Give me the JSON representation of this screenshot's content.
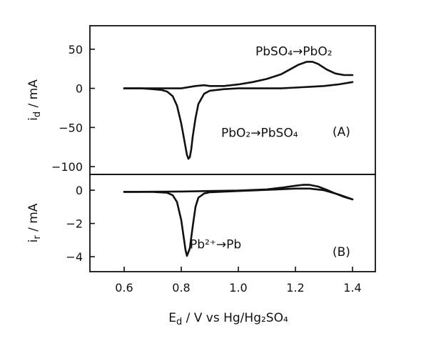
{
  "chart_data": [
    {
      "type": "line",
      "panel": "(A)",
      "ylabel": "i_d / mA",
      "ylim": [
        -110,
        80
      ],
      "yticks": [
        50,
        0,
        -50,
        -100
      ],
      "xlim": [
        0.48,
        1.48
      ],
      "grid": false,
      "annotations": [
        {
          "text": "PbSO₄→PbO₂",
          "x": 1.06,
          "y": 42
        },
        {
          "text": "PbO₂→PbSO₄",
          "x": 0.94,
          "y": -62
        }
      ],
      "series": [
        {
          "x": [
            0.6,
            0.66,
            0.7,
            0.73,
            0.75,
            0.77,
            0.785,
            0.8,
            0.81,
            0.82,
            0.825,
            0.83,
            0.835,
            0.84,
            0.85,
            0.86,
            0.88,
            0.9,
            0.95,
            1.0,
            1.05,
            1.1,
            1.15,
            1.2,
            1.25,
            1.3,
            1.35,
            1.4
          ],
          "y": [
            0,
            0,
            -1,
            -2,
            -4,
            -10,
            -22,
            -45,
            -65,
            -85,
            -90,
            -88,
            -78,
            -62,
            -38,
            -20,
            -7,
            -3,
            -1,
            0,
            0,
            0,
            0,
            1,
            2,
            3,
            5,
            8
          ]
        },
        {
          "x": [
            0.6,
            0.7,
            0.8,
            0.85,
            0.88,
            0.9,
            0.95,
            1.0,
            1.05,
            1.1,
            1.15,
            1.18,
            1.21,
            1.24,
            1.26,
            1.28,
            1.31,
            1.34,
            1.37,
            1.4
          ],
          "y": [
            0,
            0,
            0,
            3,
            4,
            3,
            3,
            5,
            8,
            12,
            18,
            24,
            30,
            34,
            34,
            31,
            24,
            19,
            17,
            17
          ]
        }
      ]
    },
    {
      "type": "line",
      "panel": "(B)",
      "ylabel": "i_r / mA",
      "ylim": [
        -4.9,
        0.95
      ],
      "yticks": [
        0,
        -2,
        -4
      ],
      "xlim": [
        0.48,
        1.48
      ],
      "xticks": [
        0.6,
        0.8,
        1.0,
        1.2,
        1.4
      ],
      "xlabel": "E_d / V vs Hg/Hg₂SO₄",
      "grid": false,
      "annotations": [
        {
          "text": "Pb²⁺→Pb",
          "x": 0.83,
          "y": -3.5
        }
      ],
      "series": [
        {
          "x": [
            0.6,
            0.7,
            0.75,
            0.77,
            0.785,
            0.8,
            0.81,
            0.815,
            0.82,
            0.83,
            0.84,
            0.85,
            0.86,
            0.88,
            0.9,
            1.0,
            1.1,
            1.2,
            1.25,
            1.3,
            1.35,
            1.4
          ],
          "y": [
            -0.1,
            -0.1,
            -0.15,
            -0.3,
            -0.7,
            -1.8,
            -3.0,
            -3.6,
            -3.95,
            -3.5,
            -2.2,
            -1.0,
            -0.45,
            -0.2,
            -0.12,
            -0.05,
            0.02,
            0.1,
            0.1,
            0.0,
            -0.25,
            -0.55
          ]
        },
        {
          "x": [
            0.6,
            0.8,
            0.9,
            1.0,
            1.1,
            1.15,
            1.2,
            1.23,
            1.25,
            1.28,
            1.31,
            1.34,
            1.37,
            1.4
          ],
          "y": [
            -0.1,
            -0.08,
            -0.05,
            -0.02,
            0.05,
            0.15,
            0.27,
            0.33,
            0.32,
            0.22,
            0.02,
            -0.2,
            -0.4,
            -0.55
          ]
        }
      ]
    }
  ]
}
